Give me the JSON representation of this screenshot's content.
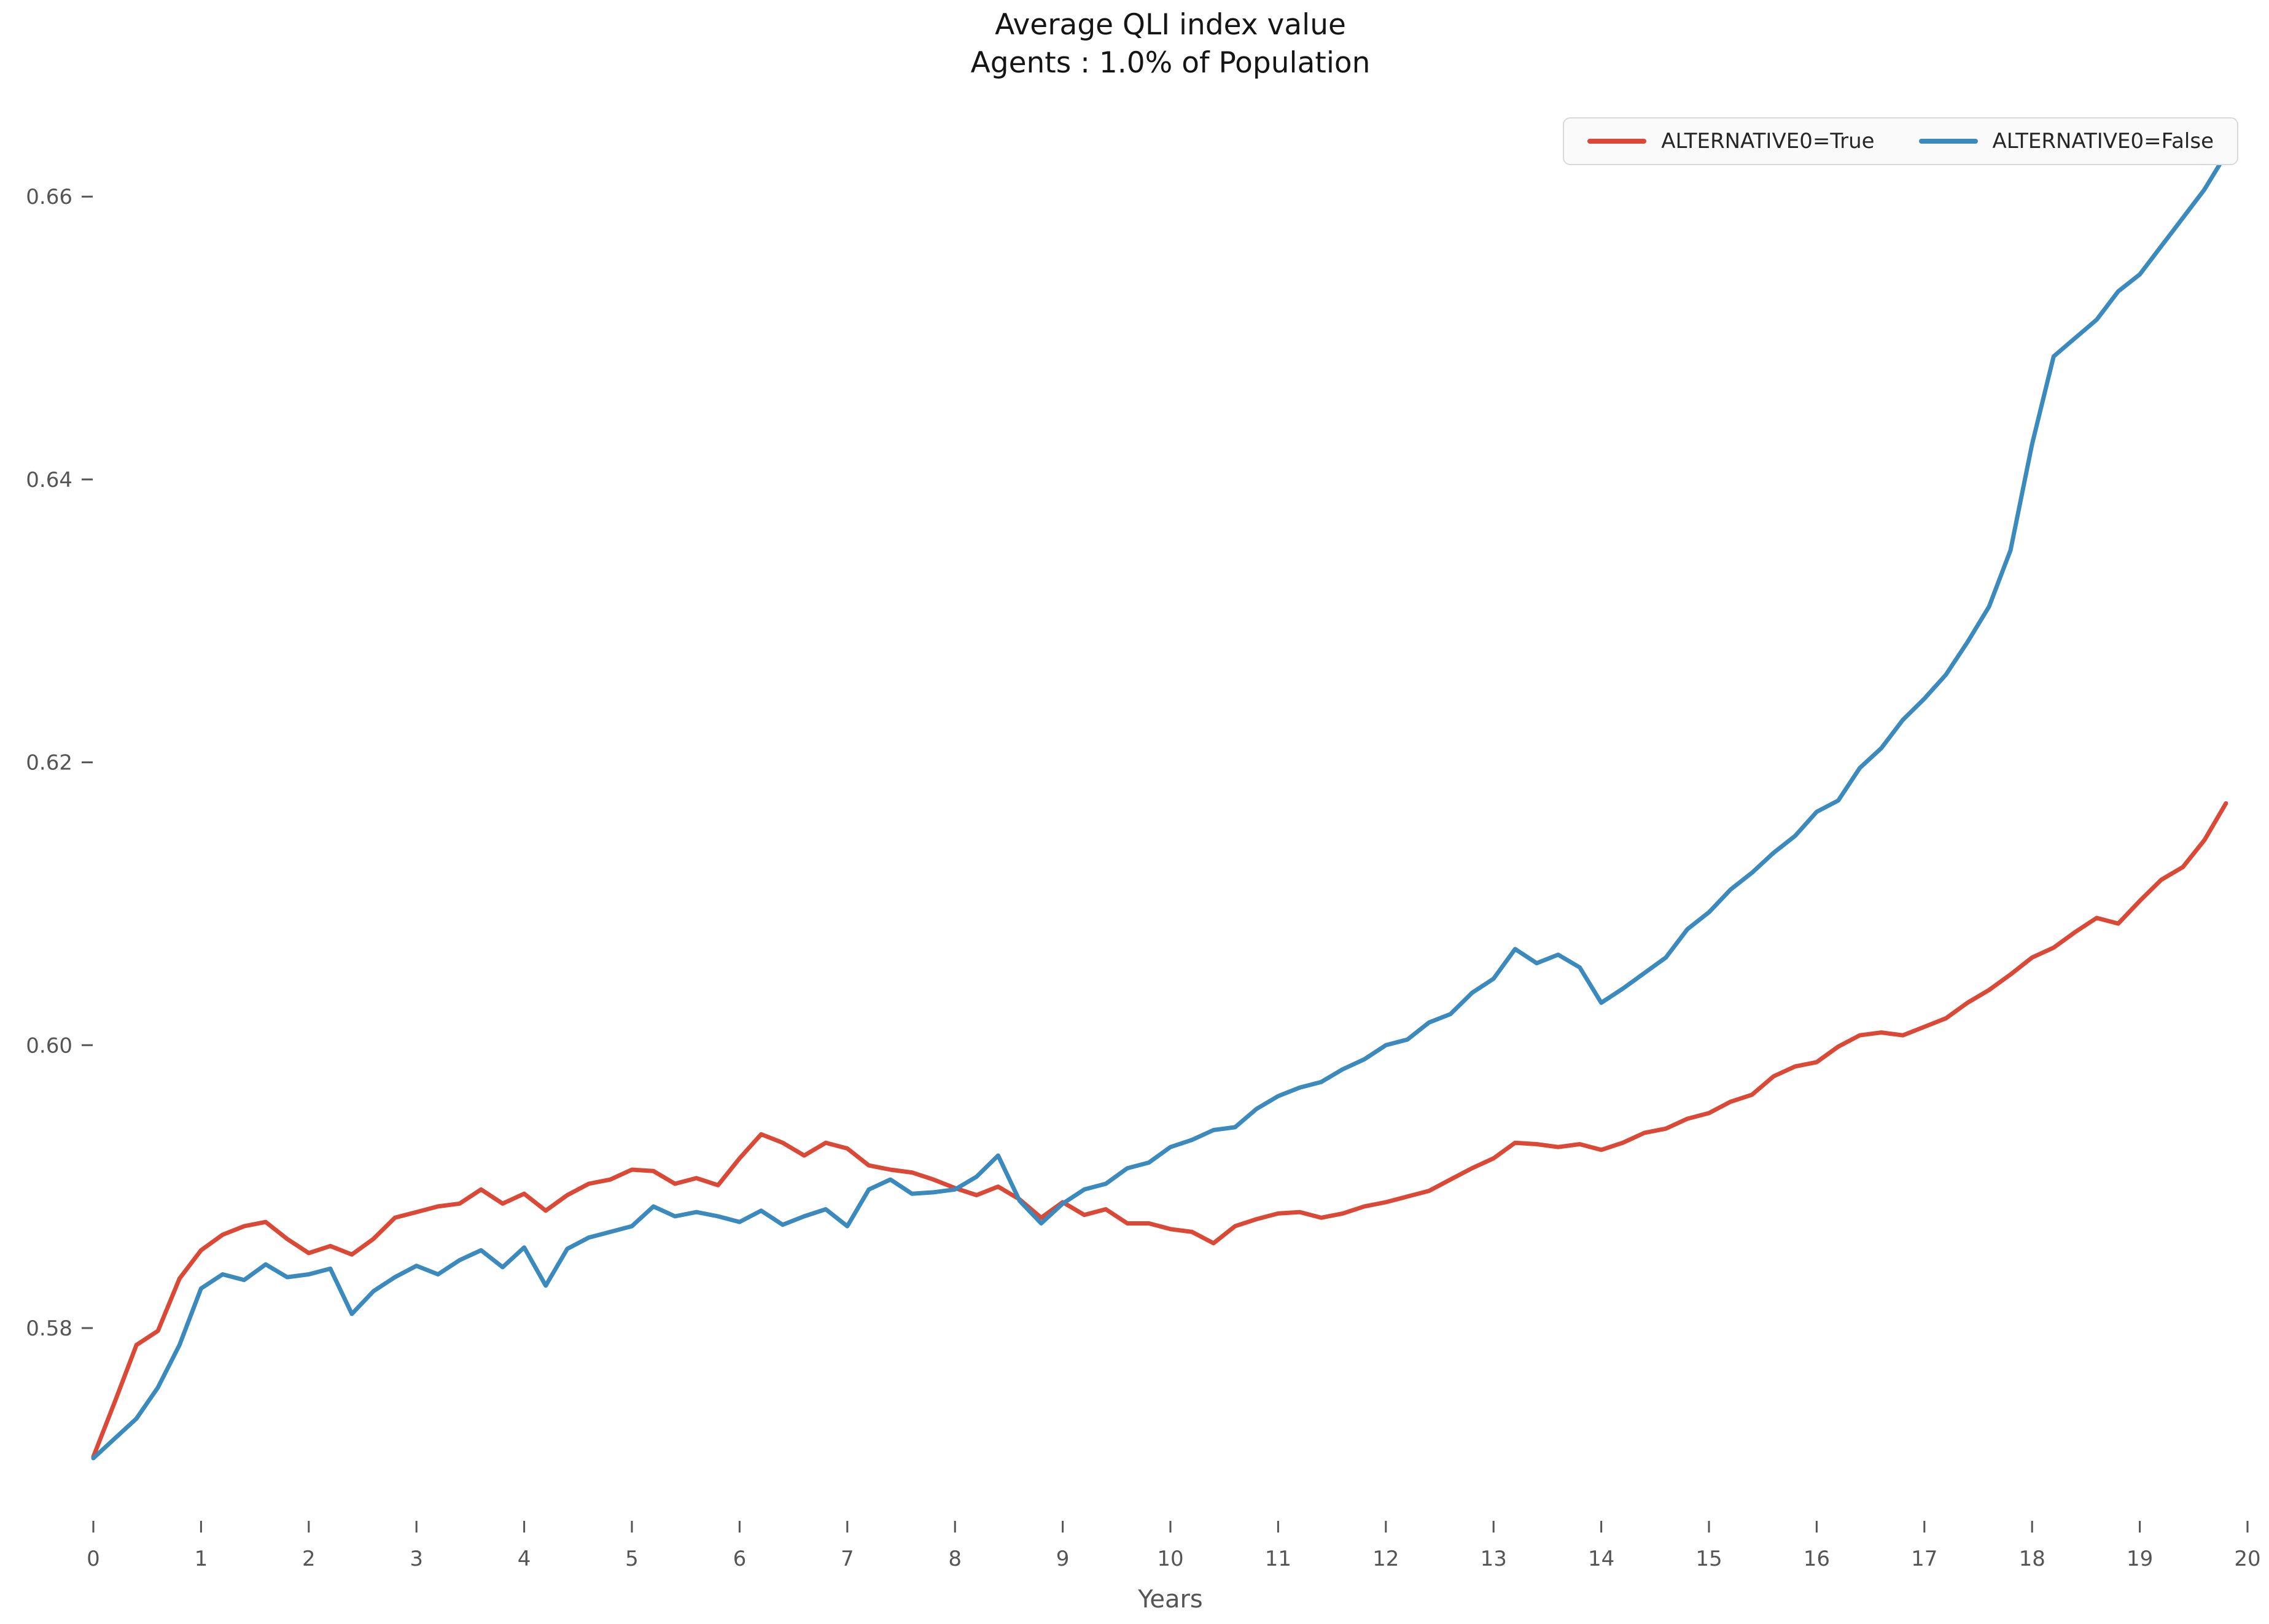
{
  "title": {
    "line1": "Average QLI index value",
    "line2": "Agents : 1.0% of Population"
  },
  "legend": {
    "items": [
      {
        "label": "ALTERNATIVE0=True",
        "color": "#DB4836"
      },
      {
        "label": "ALTERNATIVE0=False",
        "color": "#3A8ABD"
      }
    ],
    "position": "upper right"
  },
  "axes": {
    "xlabel": "Years",
    "x_ticks": [
      {
        "label": "0",
        "value": 0
      },
      {
        "label": "1",
        "value": 1
      },
      {
        "label": "2",
        "value": 2
      },
      {
        "label": "3",
        "value": 3
      },
      {
        "label": "4",
        "value": 4
      },
      {
        "label": "5",
        "value": 5
      },
      {
        "label": "6",
        "value": 6
      },
      {
        "label": "7",
        "value": 7
      },
      {
        "label": "8",
        "value": 8
      },
      {
        "label": "9",
        "value": 9
      },
      {
        "label": "10",
        "value": 10
      },
      {
        "label": "11",
        "value": 11
      },
      {
        "label": "12",
        "value": 12
      },
      {
        "label": "13",
        "value": 13
      },
      {
        "label": "14",
        "value": 14
      },
      {
        "label": "15",
        "value": 15
      },
      {
        "label": "16",
        "value": 16
      },
      {
        "label": "17",
        "value": 17
      },
      {
        "label": "18",
        "value": 18
      },
      {
        "label": "19",
        "value": 19
      },
      {
        "label": "20",
        "value": 20
      }
    ],
    "y_ticks": [
      {
        "label": "0.58",
        "value": 0.58
      },
      {
        "label": "0.60",
        "value": 0.6
      },
      {
        "label": "0.62",
        "value": 0.62
      },
      {
        "label": "0.64",
        "value": 0.64
      },
      {
        "label": "0.66",
        "value": 0.66
      }
    ],
    "tick_color": "#555555",
    "grid": false
  },
  "chart_data": {
    "type": "line",
    "title": "Average QLI index value — Agents : 1.0% of Population",
    "xlabel": "Years",
    "ylabel": "",
    "xlim": [
      0,
      20
    ],
    "ylim": [
      0.566,
      0.666
    ],
    "legend_position": "upper right",
    "x": [
      0.0,
      0.2,
      0.4,
      0.6,
      0.8,
      1.0,
      1.2,
      1.4,
      1.6,
      1.8,
      2.0,
      2.2,
      2.4,
      2.6,
      2.8,
      3.0,
      3.2,
      3.4,
      3.6,
      3.8,
      4.0,
      4.2,
      4.4,
      4.6,
      4.8,
      5.0,
      5.2,
      5.4,
      5.6,
      5.8,
      6.0,
      6.2,
      6.4,
      6.6,
      6.8,
      7.0,
      7.2,
      7.4,
      7.6,
      7.8,
      8.0,
      8.2,
      8.4,
      8.6,
      8.8,
      9.0,
      9.2,
      9.4,
      9.6,
      9.8,
      10.0,
      10.2,
      10.4,
      10.6,
      10.8,
      11.0,
      11.2,
      11.4,
      11.6,
      11.8,
      12.0,
      12.2,
      12.4,
      12.6,
      12.8,
      13.0,
      13.2,
      13.4,
      13.6,
      13.8,
      14.0,
      14.2,
      14.4,
      14.6,
      14.8,
      15.0,
      15.2,
      15.4,
      15.6,
      15.8,
      16.0,
      16.2,
      16.4,
      16.6,
      16.8,
      17.0,
      17.2,
      17.4,
      17.6,
      17.8,
      18.0,
      18.2,
      18.4,
      18.6,
      18.8,
      19.0,
      19.2,
      19.4,
      19.6,
      19.8
    ],
    "series": [
      {
        "name": "ALTERNATIVE0=True",
        "color": "#DB4836",
        "values": [
          0.5709,
          0.5748,
          0.5788,
          0.5798,
          0.5835,
          0.5855,
          0.5866,
          0.5872,
          0.5875,
          0.5863,
          0.5853,
          0.5858,
          0.5852,
          0.5863,
          0.5878,
          0.5882,
          0.5886,
          0.5888,
          0.5898,
          0.5888,
          0.5895,
          0.5883,
          0.5894,
          0.5902,
          0.5905,
          0.5912,
          0.5911,
          0.5902,
          0.5906,
          0.5901,
          0.592,
          0.5937,
          0.5931,
          0.5922,
          0.5931,
          0.5927,
          0.5915,
          0.5912,
          0.591,
          0.5905,
          0.5899,
          0.5894,
          0.59,
          0.5891,
          0.5878,
          0.5889,
          0.588,
          0.5884,
          0.5874,
          0.5874,
          0.587,
          0.5868,
          0.586,
          0.5872,
          0.5877,
          0.5881,
          0.5882,
          0.5878,
          0.5881,
          0.5886,
          0.5889,
          0.5893,
          0.5897,
          0.5905,
          0.5913,
          0.592,
          0.5931,
          0.593,
          0.5928,
          0.593,
          0.5926,
          0.5931,
          0.5938,
          0.5941,
          0.5948,
          0.5952,
          0.596,
          0.5965,
          0.5978,
          0.5985,
          0.5988,
          0.5999,
          0.6007,
          0.6009,
          0.6007,
          0.6013,
          0.6019,
          0.603,
          0.6039,
          0.605,
          0.6062,
          0.6069,
          0.608,
          0.609,
          0.6086,
          0.6102,
          0.6117,
          0.6126,
          0.6145,
          0.6171
        ]
      },
      {
        "name": "ALTERNATIVE0=False",
        "color": "#3A8ABD",
        "values": [
          0.5708,
          0.5722,
          0.5736,
          0.5758,
          0.5788,
          0.5828,
          0.5838,
          0.5834,
          0.5845,
          0.5836,
          0.5838,
          0.5842,
          0.581,
          0.5826,
          0.5836,
          0.5844,
          0.5838,
          0.5848,
          0.5855,
          0.5843,
          0.5857,
          0.583,
          0.5856,
          0.5864,
          0.5868,
          0.5872,
          0.5886,
          0.5879,
          0.5882,
          0.5879,
          0.5875,
          0.5883,
          0.5873,
          0.5879,
          0.5884,
          0.5872,
          0.5898,
          0.5905,
          0.5895,
          0.5896,
          0.5898,
          0.5907,
          0.5922,
          0.589,
          0.5874,
          0.5888,
          0.5898,
          0.5902,
          0.5913,
          0.5917,
          0.5928,
          0.5933,
          0.594,
          0.5942,
          0.5955,
          0.5964,
          0.597,
          0.5974,
          0.5983,
          0.599,
          0.6,
          0.6004,
          0.6016,
          0.6022,
          0.6037,
          0.6047,
          0.6068,
          0.6058,
          0.6064,
          0.6055,
          0.603,
          0.604,
          0.6051,
          0.6062,
          0.6082,
          0.6094,
          0.611,
          0.6122,
          0.6136,
          0.6148,
          0.6165,
          0.6173,
          0.6196,
          0.621,
          0.623,
          0.6245,
          0.6262,
          0.6285,
          0.631,
          0.635,
          0.6425,
          0.6487,
          0.65,
          0.6513,
          0.6533,
          0.6545,
          0.6565,
          0.6585,
          0.6605,
          0.663
        ]
      }
    ]
  }
}
